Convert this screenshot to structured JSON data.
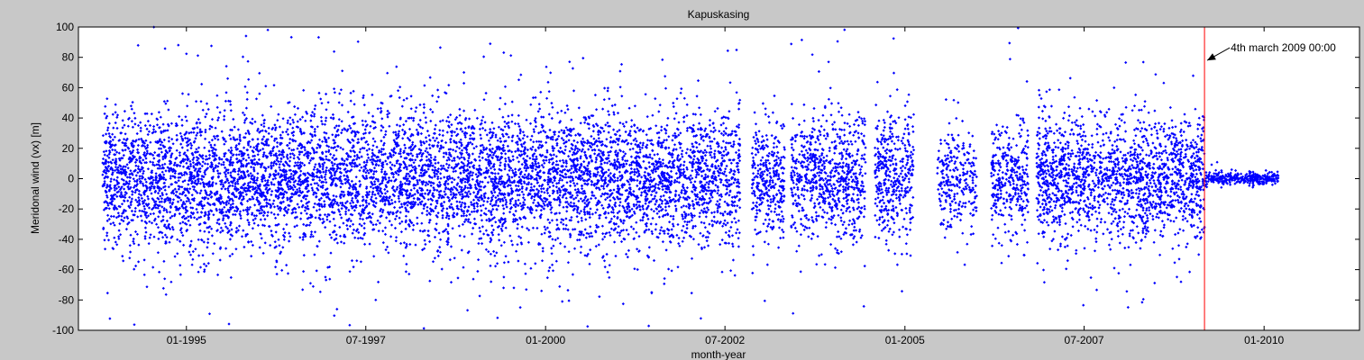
{
  "chart_data": {
    "type": "scatter",
    "title": "Kapuskasing",
    "xlabel": "month-year",
    "ylabel": "Meridonal wind (vx) [m]",
    "xlim": [
      "1993-07-01",
      "2011-05-01"
    ],
    "ylim": [
      -100,
      100
    ],
    "x_ticks": [
      {
        "date": "1995-01-01",
        "label": "01-1995"
      },
      {
        "date": "1997-07-01",
        "label": "07-1997"
      },
      {
        "date": "2000-01-01",
        "label": "01-2000"
      },
      {
        "date": "2002-07-01",
        "label": "07-2002"
      },
      {
        "date": "2005-01-01",
        "label": "01-2005"
      },
      {
        "date": "2007-07-01",
        "label": "07-2007"
      },
      {
        "date": "2010-01-01",
        "label": "01-2010"
      }
    ],
    "y_ticks": [
      -100,
      -80,
      -60,
      -40,
      -20,
      0,
      20,
      40,
      60,
      80,
      100
    ],
    "grid": false,
    "marker_color": "#0000ff",
    "data_segments": [
      {
        "start": "1993-11-01",
        "end": "2002-09-15",
        "spread": 22,
        "density": 1.0
      },
      {
        "start": "2002-11-15",
        "end": "2003-05-01",
        "spread": 20,
        "density": 0.9
      },
      {
        "start": "2003-06-01",
        "end": "2004-06-15",
        "spread": 20,
        "density": 0.9
      },
      {
        "start": "2004-08-01",
        "end": "2005-02-15",
        "spread": 20,
        "density": 0.9
      },
      {
        "start": "2005-06-15",
        "end": "2006-01-01",
        "spread": 16,
        "density": 0.6
      },
      {
        "start": "2006-03-15",
        "end": "2006-09-20",
        "spread": 18,
        "density": 0.8
      },
      {
        "start": "2006-11-01",
        "end": "2009-03-04",
        "spread": 20,
        "density": 0.95
      },
      {
        "start": "2009-03-05",
        "end": "2010-03-15",
        "spread": 2,
        "density": 0.4
      }
    ],
    "marker_line": {
      "date": "2009-03-04",
      "color": "#ff0000"
    },
    "annotation": {
      "text": "4th march 2009 00:00",
      "date": "2009-03-04",
      "value": 78
    }
  }
}
